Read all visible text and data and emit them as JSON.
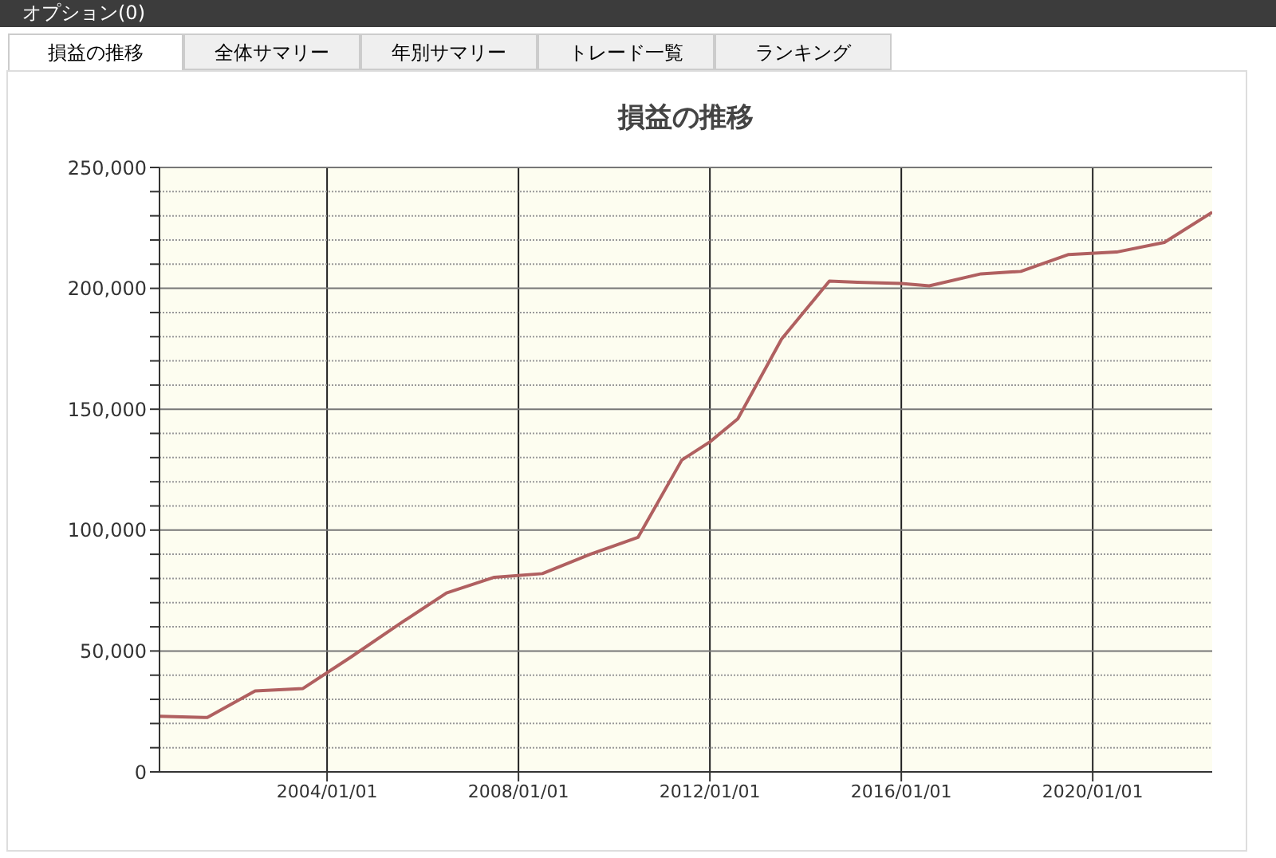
{
  "chart_data": {
    "type": "line",
    "title": "損益の推移",
    "annotations": [
      "オプション(0)",
      "損益の推移",
      "全体サマリー",
      "年別サマリー",
      "トレード一覧",
      "ランキング"
    ],
    "x": [
      "2000-07",
      "2001-07",
      "2002-07",
      "2003-07",
      "2004-07",
      "2005-07",
      "2006-07",
      "2007-07",
      "2008-07",
      "2009-07",
      "2010-07",
      "2011-06",
      "2012-01",
      "2012-08",
      "2013-07",
      "2014-07",
      "2015-02",
      "2016-01",
      "2016-08",
      "2017-09",
      "2018-07",
      "2019-07",
      "2020-07",
      "2021-07",
      "2022-07"
    ],
    "series": [
      {
        "color": "#b06060",
        "values": [
          23000,
          22500,
          33500,
          34500,
          47500,
          61000,
          74000,
          80500,
          82000,
          90000,
          97000,
          129000,
          136500,
          146000,
          179000,
          203000,
          202500,
          202000,
          201000,
          206000,
          207000,
          214000,
          215000,
          219000,
          231500
        ]
      }
    ],
    "xlim": [
      "2000-07",
      "2022-07"
    ],
    "xticks": [
      {
        "value": "2004-01-01",
        "label": "2004/01/01"
      },
      {
        "value": "2008-01-01",
        "label": "2008/01/01"
      },
      {
        "value": "2012-01-01",
        "label": "2012/01/01"
      },
      {
        "value": "2016-01-01",
        "label": "2016/01/01"
      },
      {
        "value": "2020-01-01",
        "label": "2020/01/01"
      }
    ],
    "ylim": [
      0,
      250000
    ],
    "yticks": [
      {
        "value": 0,
        "label": "0"
      },
      {
        "value": 10000,
        "label": null
      },
      {
        "value": 20000,
        "label": null
      },
      {
        "value": 30000,
        "label": null
      },
      {
        "value": 40000,
        "label": null
      },
      {
        "value": 50000,
        "label": "50,000"
      },
      {
        "value": 60000,
        "label": null
      },
      {
        "value": 70000,
        "label": null
      },
      {
        "value": 80000,
        "label": null
      },
      {
        "value": 90000,
        "label": null
      },
      {
        "value": 100000,
        "label": "100,000"
      },
      {
        "value": 110000,
        "label": null
      },
      {
        "value": 120000,
        "label": null
      },
      {
        "value": 130000,
        "label": null
      },
      {
        "value": 140000,
        "label": null
      },
      {
        "value": 150000,
        "label": "150,000"
      },
      {
        "value": 160000,
        "label": null
      },
      {
        "value": 170000,
        "label": null
      },
      {
        "value": 180000,
        "label": null
      },
      {
        "value": 190000,
        "label": null
      },
      {
        "value": 200000,
        "label": "200,000"
      },
      {
        "value": 210000,
        "label": null
      },
      {
        "value": 220000,
        "label": null
      },
      {
        "value": 230000,
        "label": null
      },
      {
        "value": 240000,
        "label": null
      },
      {
        "value": 250000,
        "label": "250,000"
      }
    ],
    "grid": true,
    "marker": "none",
    "line_style": "solid"
  }
}
